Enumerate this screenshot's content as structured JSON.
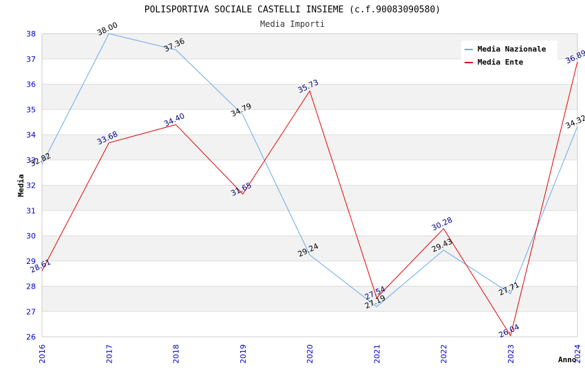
{
  "chart_data": {
    "type": "line",
    "title": "POLISPORTIVA SOCIALE CASTELLI INSIEME (c.f.90083090580)",
    "subtitle": "Media Importi",
    "xlabel": "Anno",
    "ylabel": "Media",
    "categories": [
      "2016",
      "2017",
      "2018",
      "2019",
      "2020",
      "2021",
      "2022",
      "2023",
      "2024"
    ],
    "ylim": [
      26,
      38
    ],
    "yticks": [
      26,
      27,
      28,
      29,
      30,
      31,
      32,
      33,
      34,
      35,
      36,
      37,
      38
    ],
    "grid": true,
    "legend_position": "top-right",
    "series": [
      {
        "name": "Media Nazionale",
        "color": "#6aa8e8",
        "label_color": "#000000",
        "values": [
          32.82,
          38.0,
          37.36,
          34.79,
          29.24,
          27.19,
          29.43,
          27.71,
          34.32
        ],
        "labels": [
          "32.82",
          "38.00",
          "37.36",
          "34.79",
          "29.24",
          "27.19",
          "29.43",
          "27.71",
          "34.32"
        ]
      },
      {
        "name": "Media Ente",
        "color": "#e00000",
        "label_color": "#000080",
        "values": [
          28.61,
          33.68,
          34.4,
          31.65,
          35.73,
          27.54,
          30.28,
          26.04,
          36.89
        ],
        "labels": [
          "28.61",
          "33.68",
          "34.40",
          "31.65",
          "35.73",
          "27.54",
          "30.28",
          "26.04",
          "36.89"
        ]
      }
    ]
  }
}
